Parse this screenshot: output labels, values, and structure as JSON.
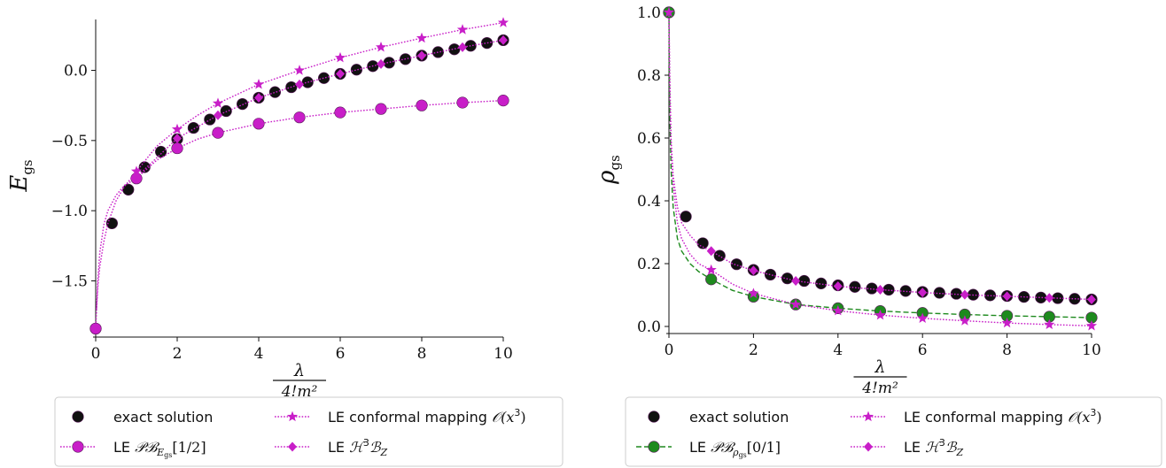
{
  "colors": {
    "black": "#111111",
    "magenta": "#c81ec8",
    "green": "#1e8a1e",
    "edge": "#5a1a5a"
  },
  "chart_data": [
    {
      "type": "line",
      "title": "",
      "xlabel_num": "λ",
      "xlabel_den": "4!m²",
      "ylabel_main": "E",
      "ylabel_sub": "gs",
      "xlim": [
        0,
        10
      ],
      "ylim": [
        -1.85,
        0.35
      ],
      "xticks": [
        0,
        2,
        4,
        6,
        8,
        10
      ],
      "xtick_labels": [
        "0",
        "2",
        "4",
        "6",
        "8",
        "10"
      ],
      "yticks": [
        -1.5,
        -1.0,
        -0.5,
        0.0
      ],
      "ytick_labels": [
        "−1.5",
        "−1.0",
        "−0.5",
        "0.0"
      ],
      "grid": false,
      "legend_placement": "below",
      "series": [
        {
          "name": "exact solution",
          "marker": "circle",
          "color": "black",
          "x": [
            0,
            0.4,
            0.8,
            1.2,
            1.6,
            2.0,
            2.4,
            2.8,
            3.2,
            3.6,
            4.0,
            4.4,
            4.8,
            5.2,
            5.6,
            6.0,
            6.4,
            6.8,
            7.2,
            7.6,
            8.0,
            8.4,
            8.8,
            9.2,
            9.6,
            10.0
          ],
          "y": [
            -1.84,
            -1.09,
            -0.85,
            -0.69,
            -0.58,
            -0.49,
            -0.41,
            -0.35,
            -0.29,
            -0.24,
            -0.195,
            -0.155,
            -0.12,
            -0.085,
            -0.055,
            -0.025,
            0.005,
            0.03,
            0.055,
            0.08,
            0.105,
            0.13,
            0.15,
            0.175,
            0.195,
            0.215
          ]
        },
        {
          "name": "LE PB_E_gs[1/2]",
          "marker": "circle",
          "color": "magenta",
          "x": [
            0,
            1,
            2,
            3,
            4,
            5,
            6,
            7,
            8,
            9,
            10
          ],
          "y": [
            -1.84,
            -0.77,
            -0.555,
            -0.445,
            -0.38,
            -0.335,
            -0.3,
            -0.275,
            -0.25,
            -0.23,
            -0.215
          ],
          "curve_x": [
            0.02,
            0.05,
            0.1,
            0.2,
            0.3,
            0.5,
            0.7,
            1,
            1.5,
            2,
            2.5,
            3,
            4,
            5,
            6,
            7,
            8,
            9,
            10
          ],
          "curve_y": [
            -1.7,
            -1.5,
            -1.3,
            -1.1,
            -1.0,
            -0.89,
            -0.82,
            -0.77,
            -0.64,
            -0.555,
            -0.49,
            -0.445,
            -0.38,
            -0.335,
            -0.3,
            -0.275,
            -0.25,
            -0.23,
            -0.215
          ]
        },
        {
          "name": "LE conformal mapping O(x³)",
          "marker": "star",
          "color": "magenta",
          "x": [
            0,
            1,
            2,
            3,
            4,
            5,
            6,
            7,
            8,
            9,
            10
          ],
          "y": [
            -1.84,
            -0.72,
            -0.42,
            -0.235,
            -0.1,
            0.0,
            0.09,
            0.165,
            0.23,
            0.29,
            0.34
          ],
          "curve_x": [
            0,
            0.05,
            0.1,
            0.2,
            0.3,
            0.5,
            0.7,
            1,
            1.5,
            2,
            2.5,
            3,
            4,
            5,
            6,
            7,
            8,
            9,
            10
          ],
          "curve_y": [
            -1.84,
            -1.55,
            -1.4,
            -1.22,
            -1.09,
            -0.93,
            -0.83,
            -0.72,
            -0.54,
            -0.42,
            -0.32,
            -0.235,
            -0.1,
            0.0,
            0.09,
            0.165,
            0.23,
            0.29,
            0.34
          ]
        },
        {
          "name": "LE H³B_Z",
          "marker": "diamond",
          "color": "magenta",
          "x": [
            1,
            2,
            3,
            4,
            5,
            6,
            7,
            8,
            9,
            10
          ],
          "y": [
            -0.76,
            -0.485,
            -0.32,
            -0.195,
            -0.1,
            -0.025,
            0.045,
            0.105,
            0.165,
            0.215
          ]
        }
      ],
      "legend": {
        "col1": [
          {
            "label": "exact solution",
            "series": 0
          },
          {
            "label_pre": "LE ",
            "label_main": "𝒫ℬ",
            "label_sub": "E",
            "label_subsub": "gs",
            "label_post": "[1/2]",
            "series": 1
          }
        ],
        "col2": [
          {
            "label_pre": "LE conformal mapping ",
            "label_main": "𝒪(x",
            "label_sup": "3",
            "label_post": ")",
            "series": 2
          },
          {
            "label_pre": "LE ",
            "label_main": "ℋ",
            "label_sup": "3",
            "label_post": "ℬ",
            "label_sub": "Z",
            "series": 3
          }
        ]
      }
    },
    {
      "type": "line",
      "title": "",
      "xlabel_num": "λ",
      "xlabel_den": "4!m²",
      "ylabel_main": "ρ",
      "ylabel_sub": "gs",
      "xlim": [
        0,
        10
      ],
      "ylim": [
        0,
        1.0
      ],
      "xticks": [
        0,
        2,
        4,
        6,
        8,
        10
      ],
      "xtick_labels": [
        "0",
        "2",
        "4",
        "6",
        "8",
        "10"
      ],
      "yticks": [
        0.0,
        0.2,
        0.4,
        0.6,
        0.8,
        1.0
      ],
      "ytick_labels": [
        "0.0",
        "0.2",
        "0.4",
        "0.6",
        "0.8",
        "1.0"
      ],
      "grid": false,
      "legend_placement": "below",
      "series": [
        {
          "name": "exact solution",
          "marker": "circle",
          "color": "black",
          "x": [
            0,
            0.4,
            0.8,
            1.2,
            1.6,
            2.0,
            2.4,
            2.8,
            3.2,
            3.6,
            4.0,
            4.4,
            4.8,
            5.2,
            5.6,
            6.0,
            6.4,
            6.8,
            7.2,
            7.6,
            8.0,
            8.4,
            8.8,
            9.2,
            9.6,
            10.0
          ],
          "y": [
            1.0,
            0.35,
            0.265,
            0.225,
            0.198,
            0.18,
            0.165,
            0.153,
            0.145,
            0.137,
            0.131,
            0.126,
            0.121,
            0.117,
            0.113,
            0.11,
            0.107,
            0.104,
            0.101,
            0.099,
            0.097,
            0.094,
            0.092,
            0.09,
            0.088,
            0.086
          ]
        },
        {
          "name": "LE PB_rho_gs[0/1]",
          "marker": "circle",
          "color": "green",
          "x": [
            0,
            1,
            2,
            3,
            4,
            5,
            6,
            7,
            8,
            9,
            10
          ],
          "y": [
            1.0,
            0.15,
            0.095,
            0.07,
            0.058,
            0.049,
            0.043,
            0.038,
            0.034,
            0.031,
            0.028
          ],
          "curve_x": [
            0,
            0.01,
            0.02,
            0.05,
            0.1,
            0.2,
            0.3,
            0.5,
            0.7,
            1,
            1.5,
            2,
            3,
            4,
            5,
            6,
            7,
            8,
            9,
            10
          ],
          "curve_y": [
            1.0,
            0.8,
            0.68,
            0.5,
            0.38,
            0.28,
            0.24,
            0.2,
            0.175,
            0.15,
            0.115,
            0.095,
            0.07,
            0.058,
            0.049,
            0.043,
            0.038,
            0.034,
            0.031,
            0.028
          ]
        },
        {
          "name": "LE conformal mapping O(x³)",
          "marker": "star",
          "color": "magenta",
          "x": [
            0,
            1,
            2,
            3,
            4,
            5,
            6,
            7,
            8,
            9,
            10
          ],
          "y": [
            1.0,
            0.18,
            0.105,
            0.07,
            0.05,
            0.036,
            0.026,
            0.018,
            0.011,
            0.006,
            0.002
          ],
          "curve_x": [
            0,
            0.01,
            0.02,
            0.05,
            0.1,
            0.2,
            0.3,
            0.5,
            0.7,
            1,
            1.5,
            2,
            3,
            4,
            5,
            6,
            7,
            8,
            9,
            10
          ],
          "curve_y": [
            1.0,
            0.85,
            0.75,
            0.58,
            0.45,
            0.33,
            0.28,
            0.23,
            0.2,
            0.18,
            0.135,
            0.105,
            0.07,
            0.05,
            0.036,
            0.026,
            0.018,
            0.011,
            0.006,
            0.002
          ]
        },
        {
          "name": "LE H³B_Z",
          "marker": "diamond",
          "color": "magenta",
          "x": [
            1,
            2,
            3,
            4,
            5,
            6,
            7,
            8,
            9,
            10
          ],
          "y": [
            0.24,
            0.178,
            0.145,
            0.128,
            0.117,
            0.108,
            0.101,
            0.096,
            0.091,
            0.086
          ],
          "curve_x": [
            0,
            0.02,
            0.05,
            0.1,
            0.2,
            0.3,
            0.5,
            0.7,
            1,
            1.5,
            2,
            3,
            4,
            5,
            6,
            7,
            8,
            9,
            10
          ],
          "curve_y": [
            1.0,
            0.8,
            0.6,
            0.48,
            0.38,
            0.33,
            0.29,
            0.26,
            0.24,
            0.2,
            0.178,
            0.145,
            0.128,
            0.117,
            0.108,
            0.101,
            0.096,
            0.091,
            0.086
          ]
        }
      ],
      "legend": {
        "col1": [
          {
            "label": "exact solution",
            "series": 0
          },
          {
            "label_pre": "LE ",
            "label_main": "𝒫ℬ",
            "label_sub": "ρ",
            "label_subsub": "gs",
            "label_post": "[0/1]",
            "series": 1
          }
        ],
        "col2": [
          {
            "label_pre": "LE conformal mapping ",
            "label_main": "𝒪(x",
            "label_sup": "3",
            "label_post": ")",
            "series": 2
          },
          {
            "label_pre": "LE ",
            "label_main": "ℋ",
            "label_sup": "3",
            "label_post": "ℬ",
            "label_sub": "Z",
            "series": 3
          }
        ]
      }
    }
  ]
}
